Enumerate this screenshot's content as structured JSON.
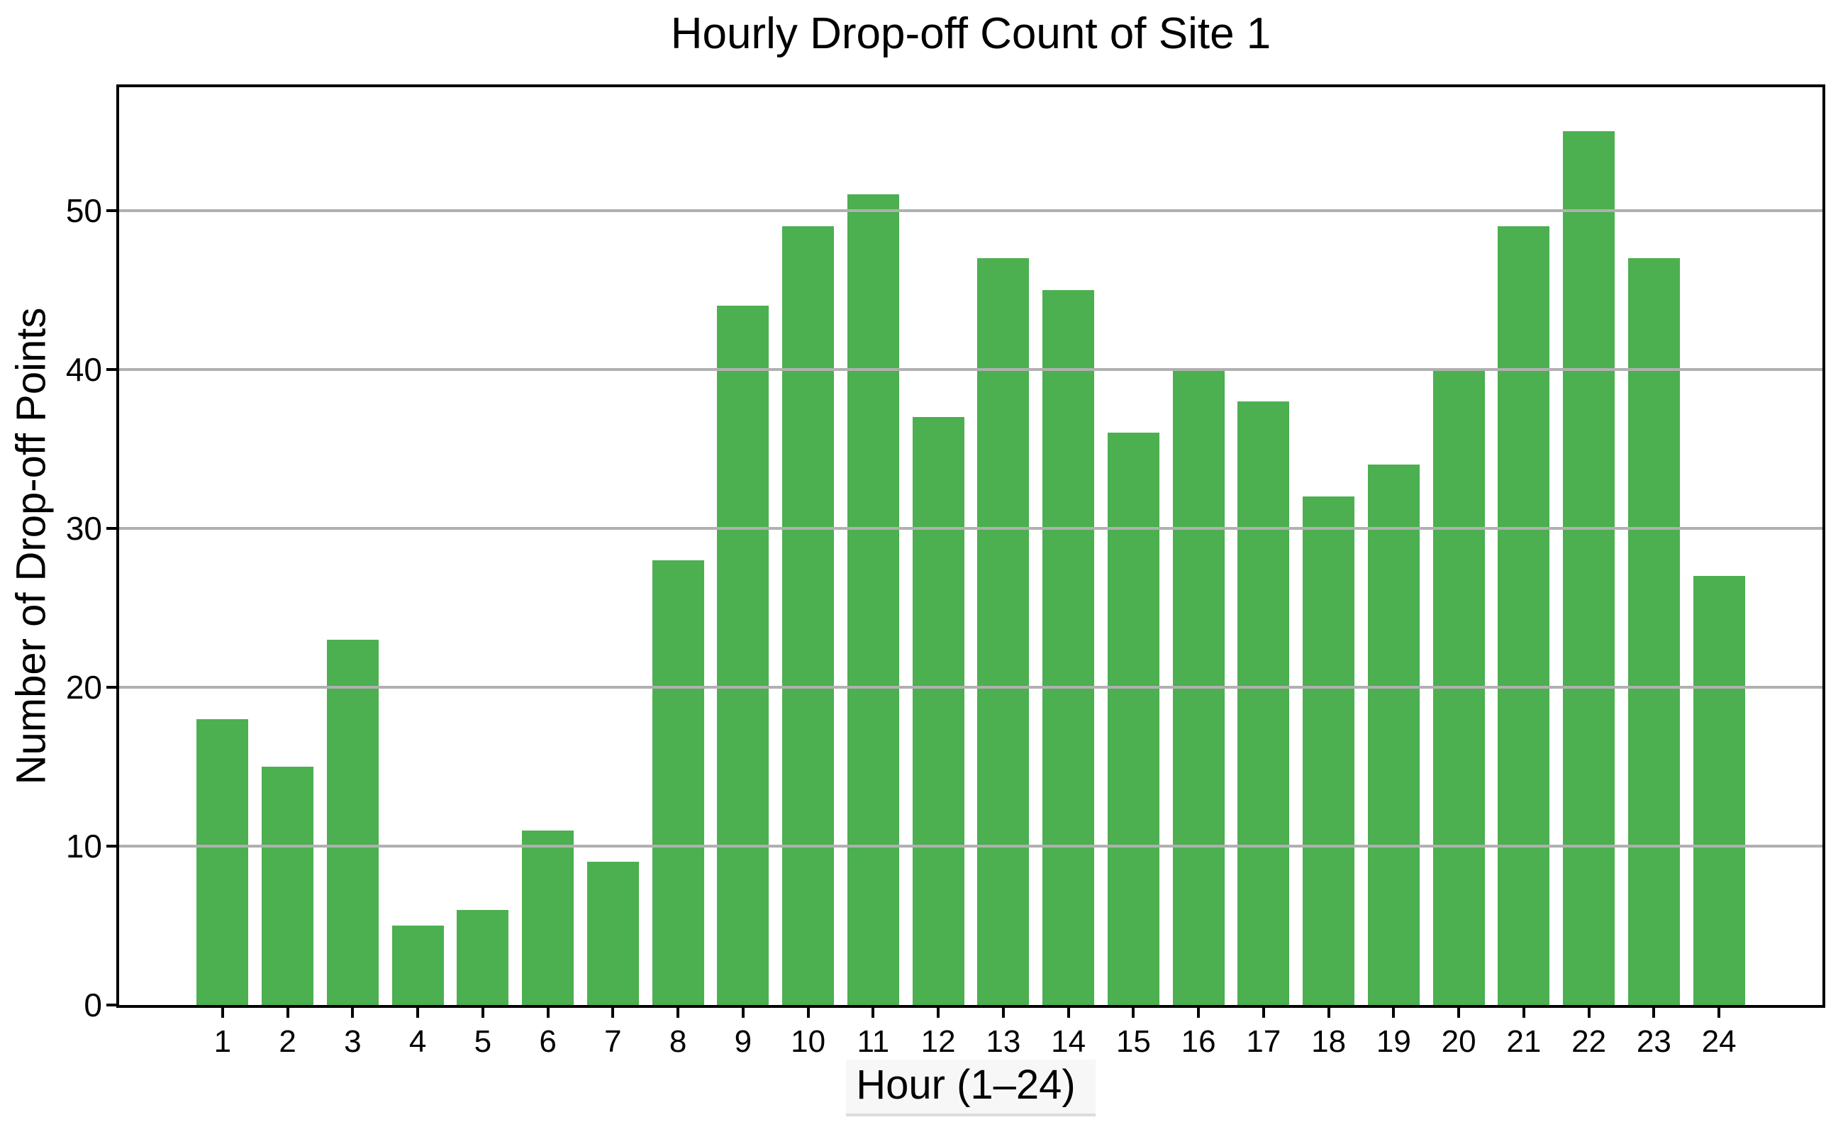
{
  "chart_data": {
    "type": "bar",
    "title": "Hourly Drop-off Count of Site 1",
    "xlabel": "Hour (1–24)",
    "ylabel": "Number of Drop-off Points",
    "categories": [
      "1",
      "2",
      "3",
      "4",
      "5",
      "6",
      "7",
      "8",
      "9",
      "10",
      "11",
      "12",
      "13",
      "14",
      "15",
      "16",
      "17",
      "18",
      "19",
      "20",
      "21",
      "22",
      "23",
      "24"
    ],
    "values": [
      18,
      15,
      23,
      5,
      6,
      11,
      9,
      28,
      44,
      49,
      51,
      37,
      47,
      45,
      36,
      40,
      38,
      32,
      34,
      40,
      49,
      55,
      47,
      27
    ],
    "yticks": [
      0,
      10,
      20,
      30,
      40,
      50
    ],
    "ylim": [
      0,
      57.75
    ],
    "xlim": [
      -0.59,
      25.59
    ],
    "bar_color": "#4caf50",
    "grid_color": "#b0b0b0",
    "axis_color": "#000000",
    "xlabel_highlight_color": "#f7f7f7",
    "grid": "horizontal gridlines drawn over bars",
    "legend": "none"
  }
}
